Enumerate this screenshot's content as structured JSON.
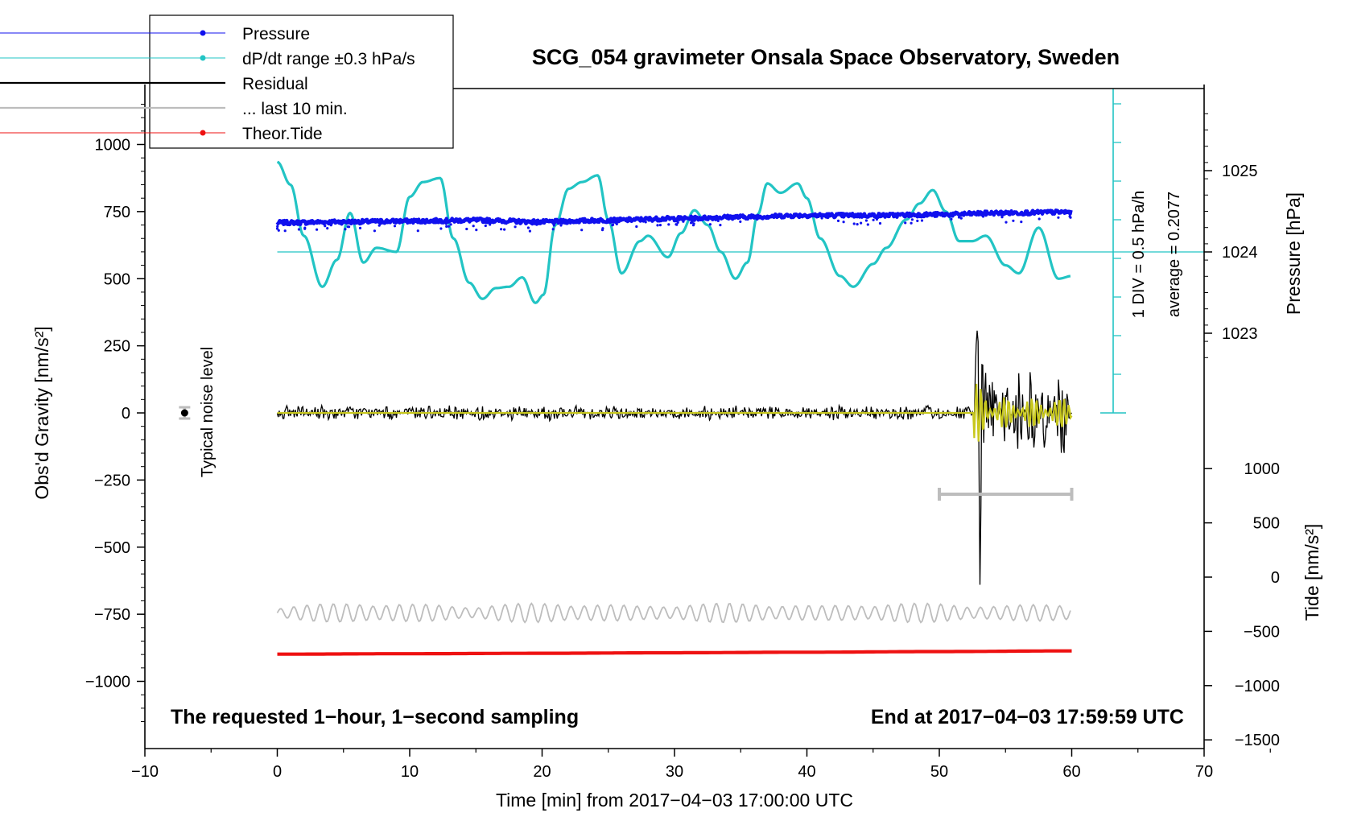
{
  "chart_data": {
    "type": "line",
    "title": "SCG_054 gravimeter Onsala Space Observatory, Sweden",
    "xlabel": "Time [min] from 2017−04−03 17:00:00 UTC",
    "ylabel_left": "Obs'd Gravity [nm/s²]",
    "ylabel_right_pressure": "Pressure [hPa]",
    "ylabel_right_tide": "Tide [nm/s²]",
    "xlim": [
      -10,
      70
    ],
    "ylim": [
      -1200,
      1200
    ],
    "x_ticks": [
      "−10",
      "0",
      "10",
      "20",
      "30",
      "40",
      "50",
      "60",
      "70"
    ],
    "y_ticks_left": [
      "−1000",
      "−750",
      "−500",
      "−250",
      "0",
      "250",
      "500",
      "750",
      "1000"
    ],
    "pressure_ticks": [
      "1023",
      "1024",
      "1025"
    ],
    "tide_ticks": [
      "−1500",
      "−1000",
      "−500",
      "0",
      "500",
      "1000"
    ],
    "legend": [
      "Pressure",
      "dP/dt range ±0.3 hPa/s",
      "Residual",
      "... last 10 min.",
      "Theor.Tide"
    ],
    "colors": {
      "pressure": "#1010ee",
      "dpdt": "#22c4c4",
      "residual": "#000000",
      "last10": "#bdbdbd",
      "tide": "#ee1111",
      "filtered": "#c8c81e",
      "axis": "#000000"
    },
    "annotations": {
      "noise_label": "Typical noise level",
      "scale_label": "1 DIV = 0.5 hPa/h",
      "average_label": "average = 0.2077",
      "bottom_left": "The requested 1−hour, 1−second sampling",
      "bottom_right": "End at 2017−04−03 17:59:59 UTC"
    },
    "series": [
      {
        "name": "Pressure",
        "unit": "hPa",
        "x": [
          0,
          5,
          10,
          15,
          20,
          25,
          30,
          35,
          40,
          45,
          50,
          55,
          60
        ],
        "values": [
          1024.36,
          1024.37,
          1024.38,
          1024.39,
          1024.37,
          1024.39,
          1024.41,
          1024.43,
          1024.45,
          1024.45,
          1024.46,
          1024.48,
          1024.49
        ]
      },
      {
        "name": "dP/dt range ±0.3 hPa/s",
        "unit": "nm/s²",
        "x": [
          0,
          1,
          2,
          3.4,
          4.5,
          5.5,
          6.5,
          7.5,
          9,
          10,
          11,
          12.3,
          13.3,
          14.5,
          15.5,
          16.5,
          17.5,
          18.5,
          19.5,
          20.1,
          21,
          22,
          23,
          24.2,
          25,
          26,
          27.4,
          28,
          29.5,
          30.5,
          31.5,
          32.5,
          33.5,
          34.6,
          35.5,
          36.3,
          37,
          38,
          39.3,
          40,
          41,
          42.5,
          43.5,
          45,
          46,
          47.5,
          48.5,
          49.5,
          50.5,
          51.5,
          52.5,
          53.5,
          55,
          56,
          57.5,
          59,
          60
        ],
        "values": [
          935,
          850,
          660,
          470,
          570,
          745,
          560,
          615,
          600,
          805,
          860,
          875,
          650,
          485,
          425,
          465,
          470,
          505,
          410,
          440,
          700,
          835,
          860,
          885,
          720,
          520,
          640,
          660,
          580,
          670,
          755,
          700,
          600,
          500,
          560,
          740,
          855,
          820,
          855,
          800,
          650,
          510,
          470,
          555,
          615,
          720,
          780,
          830,
          750,
          640,
          640,
          660,
          550,
          520,
          690,
          500,
          510
        ]
      },
      {
        "name": "Residual",
        "unit": "nm/s²",
        "x": [
          0,
          10,
          20,
          30,
          40,
          50,
          52.5,
          52.9,
          53.1,
          53.2,
          54,
          55,
          56,
          57,
          58,
          59,
          59.3,
          60
        ],
        "values": [
          0,
          0,
          0,
          0,
          0,
          0,
          10,
          315,
          -690,
          180,
          120,
          -130,
          170,
          -180,
          140,
          -125,
          220,
          0
        ]
      },
      {
        "name": "... last 10 min.",
        "unit": "nm/s²",
        "x": [
          0,
          60
        ],
        "values": [
          -745,
          -745
        ]
      },
      {
        "name": "Theor.Tide",
        "unit": "nm/s²",
        "x": [
          0,
          10,
          20,
          30,
          40,
          50,
          60
        ],
        "values": [
          -710,
          -706,
          -702,
          -697,
          -692,
          -686,
          -680
        ]
      }
    ]
  }
}
